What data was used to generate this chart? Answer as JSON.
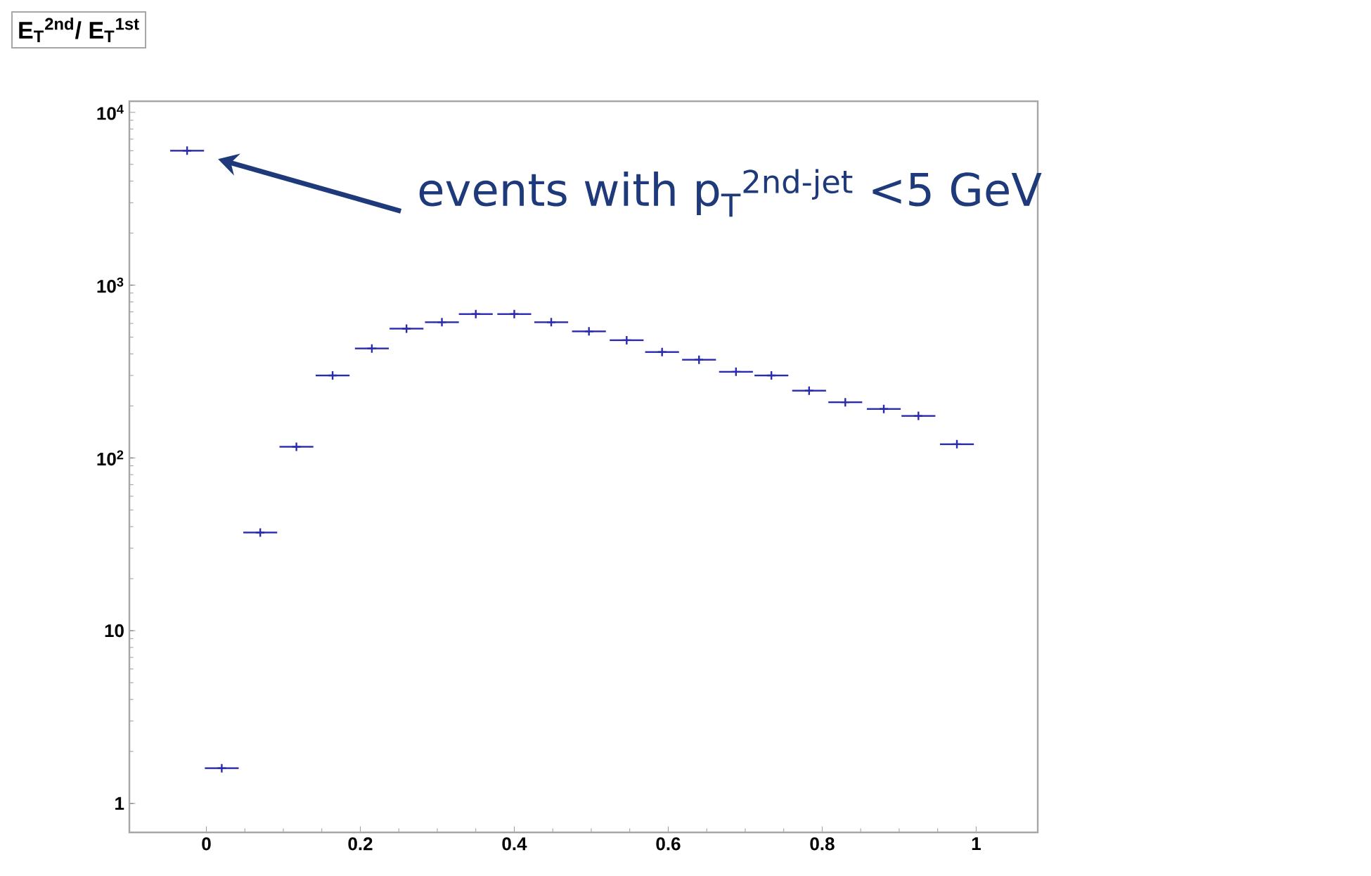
{
  "chart_data": {
    "type": "scatter",
    "ylabel": "E$_{T}$$^{2nd}$/ E$_{T}$$^{1st}$",
    "log": "y",
    "marker": "cross",
    "x": [
      -0.025,
      0.02,
      0.07,
      0.117,
      0.164,
      0.215,
      0.26,
      0.306,
      0.35,
      0.4,
      0.448,
      0.497,
      0.546,
      0.592,
      0.64,
      0.688,
      0.734,
      0.783,
      0.83,
      0.88,
      0.925,
      0.975
    ],
    "series": [
      {
        "color": "#2b2bb0",
        "values": [
          6000,
          1.6,
          37,
          116,
          300,
          430,
          560,
          610,
          680,
          680,
          610,
          540,
          480,
          410,
          370,
          315,
          300,
          245,
          210,
          192,
          175,
          120
        ],
        "xerrors": [
          0.022,
          0.022,
          0.022,
          0.022,
          0.022,
          0.022,
          0.022,
          0.022,
          0.022,
          0.022,
          0.022,
          0.022,
          0.022,
          0.022,
          0.022,
          0.022,
          0.022,
          0.022,
          0.022,
          0.022,
          0.022,
          0.022
        ]
      }
    ],
    "xlim": [
      -0.1,
      1.08
    ],
    "xticks": [
      0,
      0.2,
      0.4,
      0.6,
      0.8,
      1
    ],
    "ylim": [
      0.68,
      11600
    ],
    "yticks": [
      1,
      10,
      {
        "value": 100,
        "label": "10$^{2}$"
      },
      {
        "value": 1000,
        "label": "10$^{3}$"
      },
      {
        "value": 10000,
        "label": "10$^{4}$"
      }
    ],
    "annotations": [
      "events with p$_{T}$$^{2nd-jet}$ <5 GeV"
    ]
  }
}
